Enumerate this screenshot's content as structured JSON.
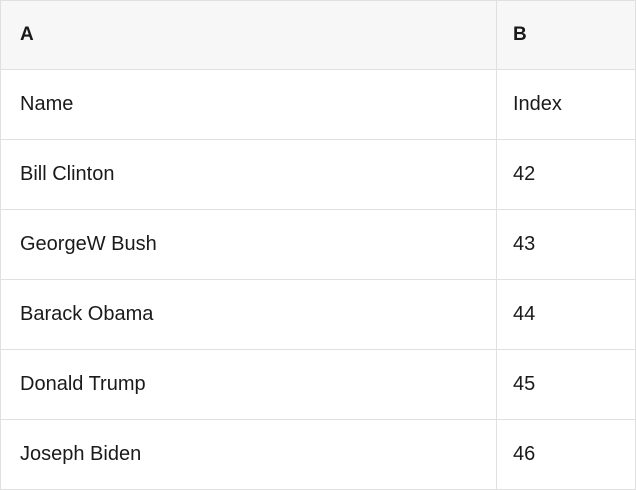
{
  "table": {
    "column_headers": [
      "A",
      "B"
    ],
    "rows": [
      {
        "a": "Name",
        "b": "Index"
      },
      {
        "a": "Bill Clinton",
        "b": "42"
      },
      {
        "a": "GeorgeW Bush",
        "b": "43"
      },
      {
        "a": "Barack Obama",
        "b": "44"
      },
      {
        "a": "Donald Trump",
        "b": "45"
      },
      {
        "a": "Joseph Biden",
        "b": "46"
      }
    ]
  },
  "colors": {
    "header_bg": "#f7f7f7",
    "border": "#e0e0e0",
    "text": "#1a1a1a"
  }
}
